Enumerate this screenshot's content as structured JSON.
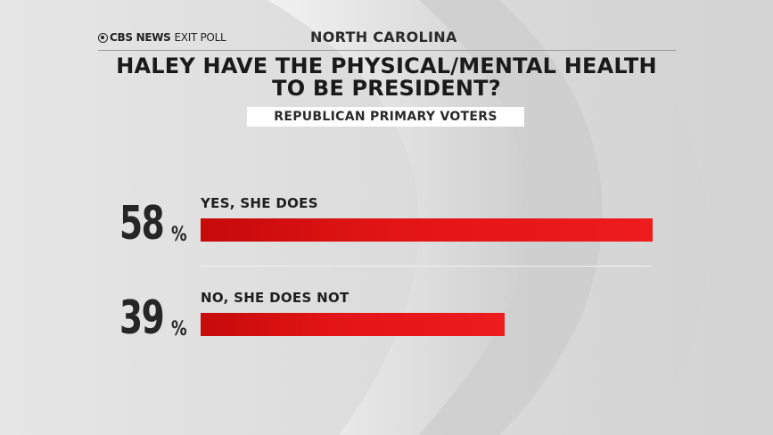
{
  "header": {
    "brand_name": "CBS NEWS",
    "brand_sub": "EXIT POLL",
    "state": "NORTH CAROLINA"
  },
  "title_line1": "HALEY HAVE THE PHYSICAL/MENTAL HEALTH",
  "title_line2": "TO BE PRESIDENT?",
  "subtitle": "REPUBLICAN PRIMARY VOTERS",
  "colors": {
    "bar": "#e11414",
    "text": "#1a1a1a",
    "background": "#dcdcdc"
  },
  "chart_data": {
    "type": "bar",
    "orientation": "horizontal",
    "title": "HALEY HAVE THE PHYSICAL/MENTAL HEALTH TO BE PRESIDENT?",
    "subtitle": "REPUBLICAN PRIMARY VOTERS",
    "categories": [
      "YES, SHE DOES",
      "NO, SHE DOES NOT"
    ],
    "values": [
      58,
      39
    ],
    "value_labels": [
      "58",
      "39"
    ],
    "unit": "%",
    "xlim": [
      0,
      58
    ],
    "grid": false,
    "legend": "none"
  }
}
